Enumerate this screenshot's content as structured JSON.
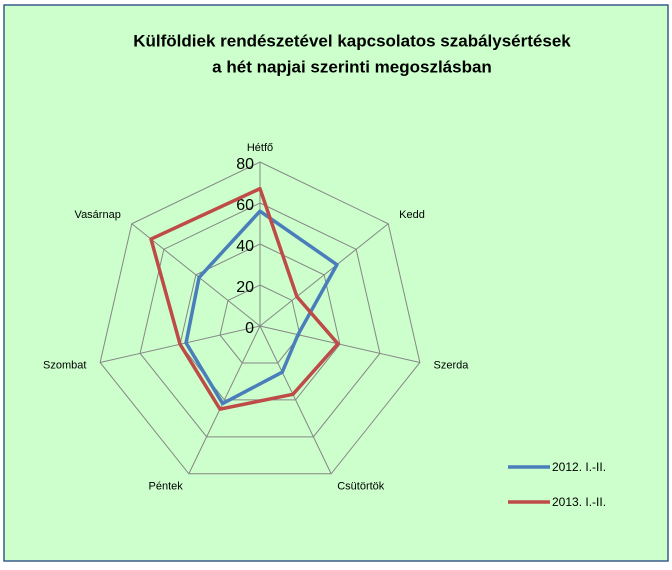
{
  "chart_data": {
    "type": "radar",
    "title": [
      "Külföldiek rendészetével kapcsolatos szabálysértések",
      "a hét napjai szerinti megoszlásban"
    ],
    "categories": [
      "Hétfő",
      "Kedd",
      "Szerda",
      "Csütörtök",
      "Péntek",
      "Szombat",
      "Vasárnap"
    ],
    "series": [
      {
        "name": "2012. I.-II.",
        "color": "#4a7ebb",
        "values": [
          56,
          48,
          19,
          25,
          42,
          37,
          38
        ]
      },
      {
        "name": "2013. I.-II.",
        "color": "#be4b48",
        "values": [
          67,
          23,
          39,
          37,
          45,
          40,
          68
        ]
      }
    ],
    "ylim": [
      0,
      80
    ],
    "yticks": [
      0,
      20,
      40,
      60,
      80
    ],
    "grid": true,
    "legend": "right"
  }
}
